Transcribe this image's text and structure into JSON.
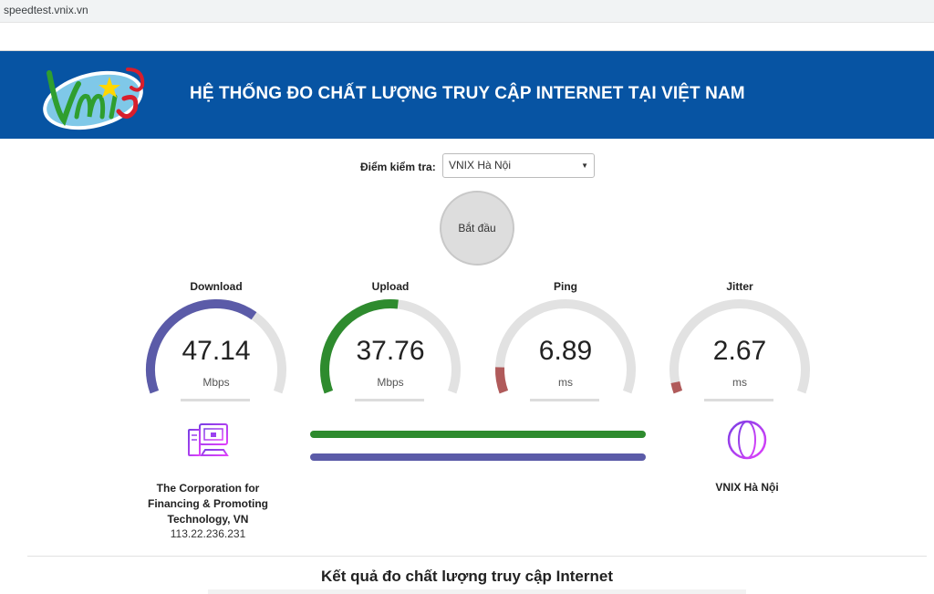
{
  "browser": {
    "url": "speedtest.vnix.vn"
  },
  "header": {
    "logo_text": "Vnix",
    "title": "HỆ THỐNG ĐO CHẤT LƯỢNG TRUY CẬP INTERNET TẠI VIỆT NAM",
    "background_color": "#0754a3"
  },
  "test_point": {
    "label": "Điểm kiểm tra:",
    "selected": "VNIX Hà Nội"
  },
  "start_button": {
    "label": "Bắt đầu"
  },
  "gauges": [
    {
      "title": "Download",
      "value": "47.14",
      "unit": "Mbps",
      "fraction": 0.66,
      "color": "#5b5ba8"
    },
    {
      "title": "Upload",
      "value": "37.76",
      "unit": "Mbps",
      "fraction": 0.53,
      "color": "#2e8b2e"
    },
    {
      "title": "Ping",
      "value": "6.89",
      "unit": "ms",
      "fraction": 0.1,
      "color": "#b05a5a"
    },
    {
      "title": "Jitter",
      "value": "2.67",
      "unit": "ms",
      "fraction": 0.04,
      "color": "#b05a5a"
    }
  ],
  "progress": {
    "upload_color": "#2e8b2e",
    "download_color": "#5b5ba8",
    "upload_fraction": 1.0,
    "download_fraction": 1.0
  },
  "client": {
    "icon": "server-computer-icon",
    "isp": "The Corporation for Financing & Promoting Technology, VN",
    "ip": "113.22.236.231"
  },
  "server": {
    "icon": "globe-icon",
    "name": "VNIX Hà Nội"
  },
  "results": {
    "title": "Kết quả đo chất lượng truy cập Internet"
  }
}
